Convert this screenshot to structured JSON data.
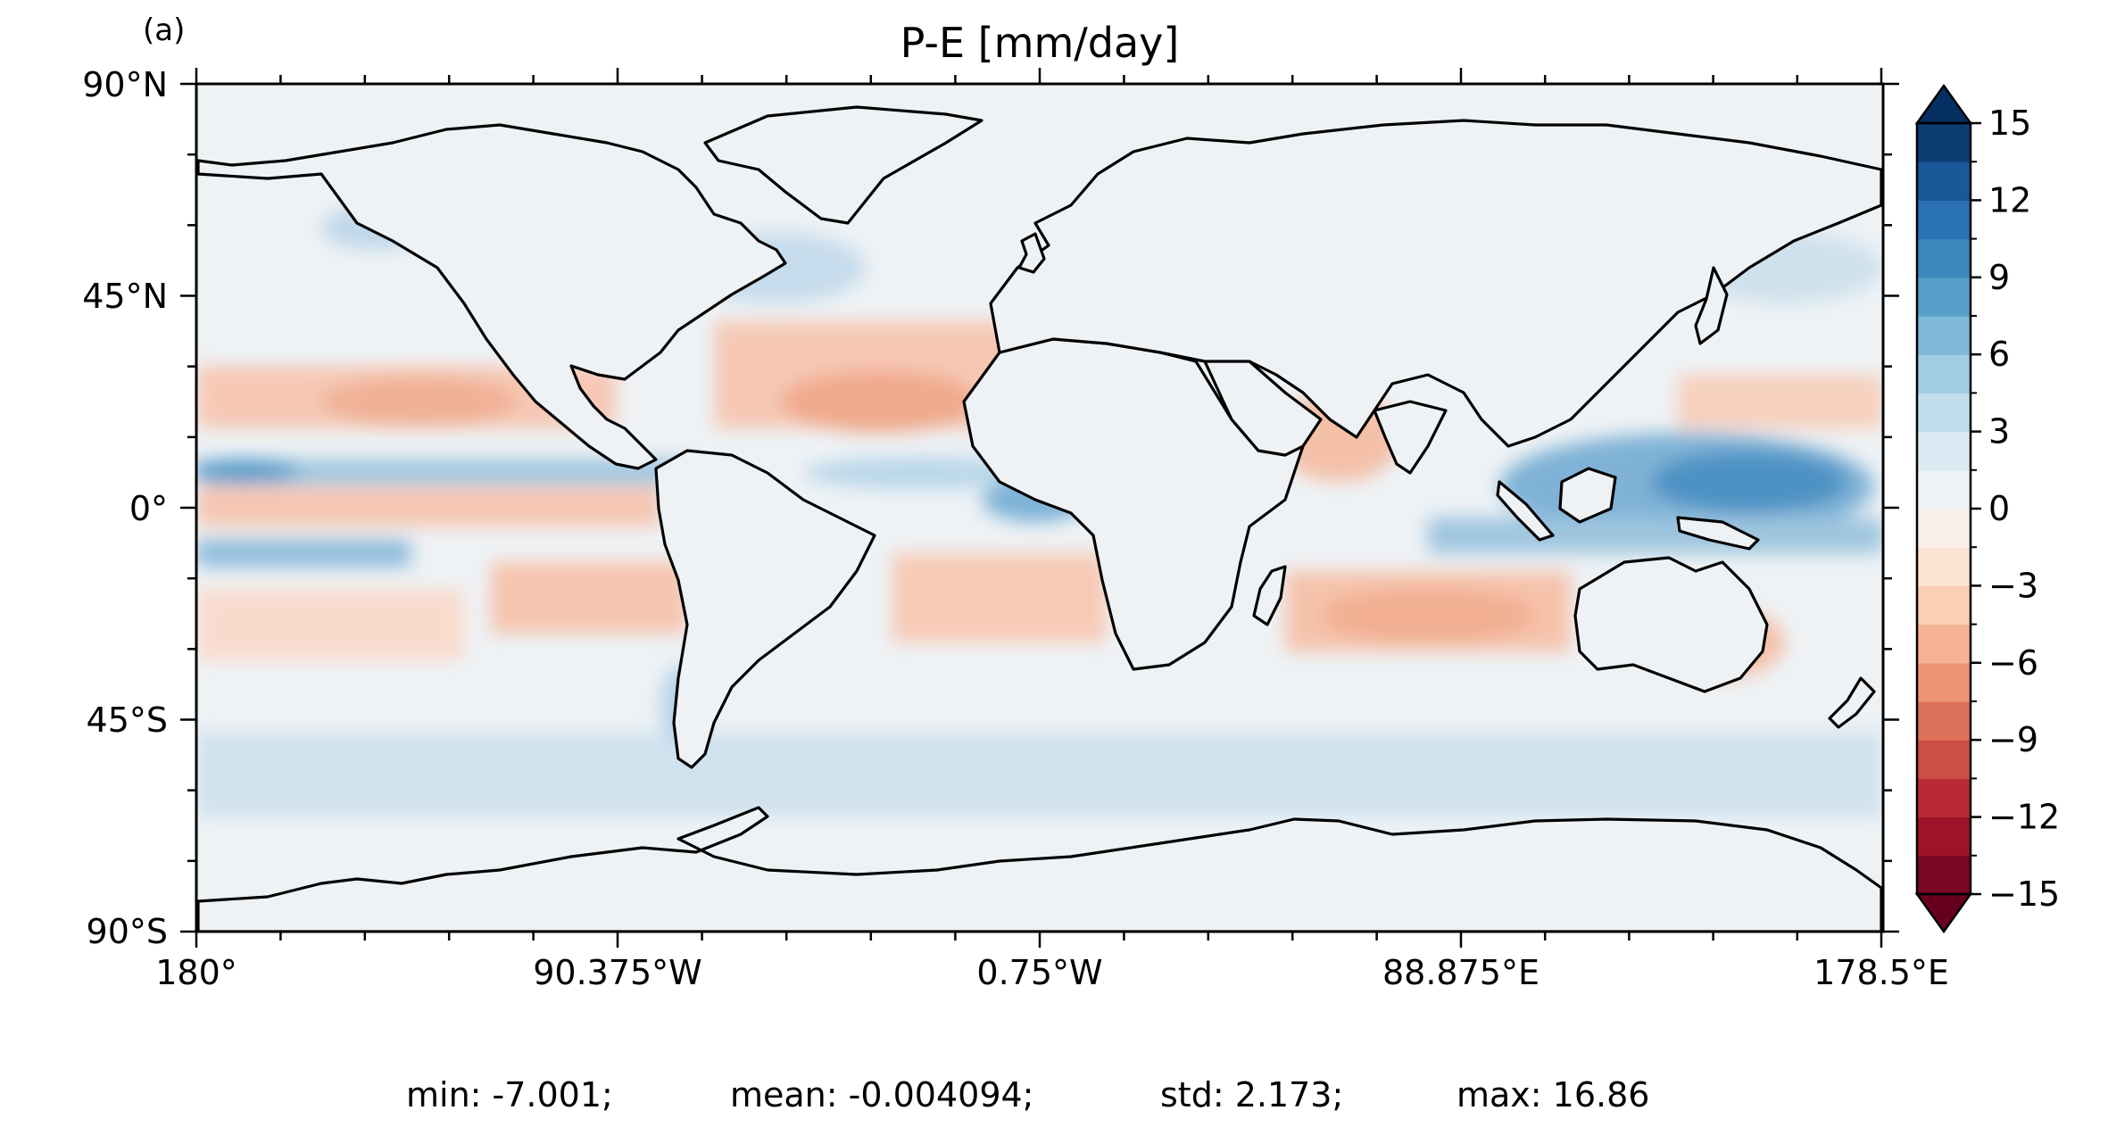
{
  "panel_label": "(a)",
  "title": "P-E [mm/day]",
  "chart_data": {
    "type": "heatmap",
    "title": "P-E [mm/day]",
    "projection": "plate-carree",
    "lon_range": [
      -180,
      178.5
    ],
    "lat_range": [
      -90,
      90
    ],
    "x_ticks": [
      "180°",
      "90.375°W",
      "0.75°W",
      "88.875°E",
      "178.5°E"
    ],
    "y_ticks": [
      "90°N",
      "45°N",
      "0°",
      "45°S",
      "90°S"
    ],
    "colormap": "RdBu",
    "colorbar": {
      "vmin": -15,
      "vmax": 15,
      "step": 1.5,
      "extend": "both",
      "ticks": [
        "15",
        "12",
        "9",
        "6",
        "3",
        "0",
        "−3",
        "−6",
        "−9",
        "−12",
        "−15"
      ],
      "tick_values": [
        15,
        12,
        9,
        6,
        3,
        0,
        -3,
        -6,
        -9,
        -12,
        -15
      ]
    },
    "grid": false,
    "legend_placement": "right",
    "stats": {
      "min": -7.001,
      "mean": -0.004094,
      "std": 2.173,
      "max": 16.86
    }
  },
  "stats_text": {
    "min": "min: -7.001;",
    "mean": "mean: -0.004094;",
    "std": "std: 2.173;",
    "max": "max: 16.86"
  },
  "colors": {
    "ocean_base": "#eef2f5",
    "dry_band": "#f2b9a0",
    "wet_band": "#3f86bd",
    "coastline": "#000000"
  }
}
